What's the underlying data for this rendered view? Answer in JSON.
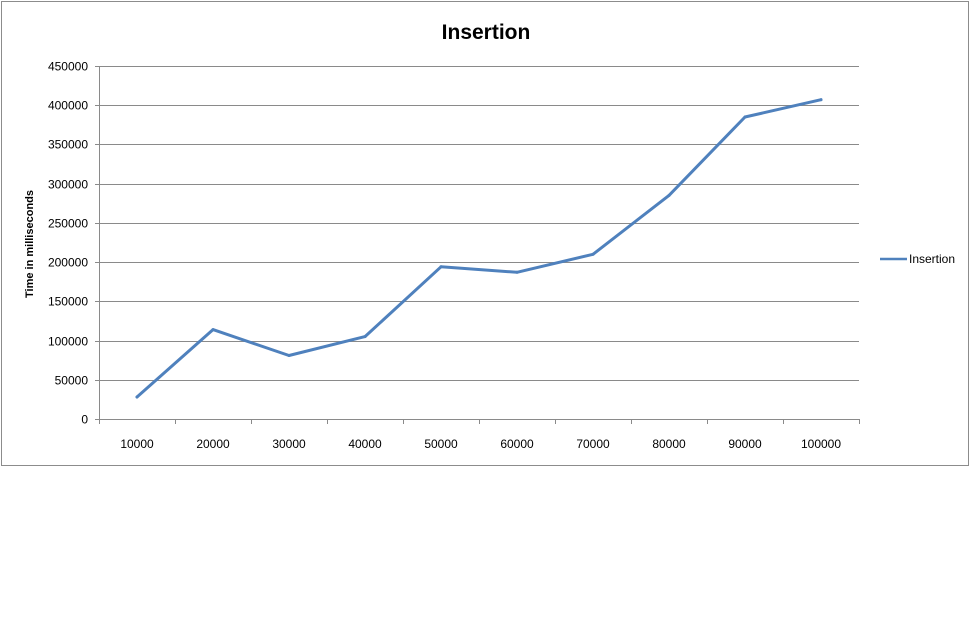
{
  "chart_data": {
    "type": "line",
    "title": "Insertion",
    "xlabel": "",
    "ylabel": "Time in milliseconds",
    "categories": [
      "10000",
      "20000",
      "30000",
      "40000",
      "50000",
      "60000",
      "70000",
      "80000",
      "90000",
      "100000"
    ],
    "series": [
      {
        "name": "Insertion",
        "values": [
          28000,
          114000,
          81000,
          105000,
          194000,
          187000,
          210000,
          285000,
          385000,
          407000
        ],
        "color": "#4f81bd"
      }
    ],
    "yticks": [
      "0",
      "50000",
      "100000",
      "150000",
      "200000",
      "250000",
      "300000",
      "350000",
      "400000",
      "450000"
    ],
    "ylim": [
      0,
      450000
    ],
    "grid": "horizontal",
    "legend_position": "right"
  }
}
